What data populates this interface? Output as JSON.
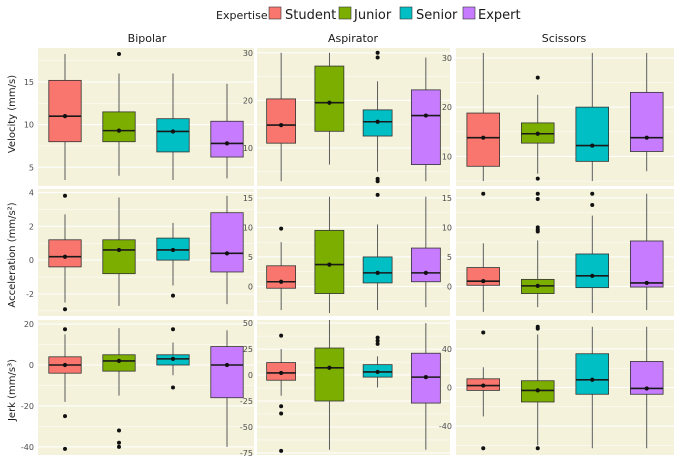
{
  "legend": {
    "title": "Expertise",
    "items": [
      {
        "label": "Student",
        "color": "#F8766D"
      },
      {
        "label": "Junior",
        "color": "#7CAE00"
      },
      {
        "label": "Senior",
        "color": "#00BFC4"
      },
      {
        "label": "Expert",
        "color": "#C77CFF"
      }
    ]
  },
  "panel_background": "#F4F2DB",
  "columns": [
    "Bipolar",
    "Aspirator",
    "Scissors"
  ],
  "rows": [
    "Velocity (mm/s)",
    "Acceleration (mm/s²)",
    "Jerk (mm/s³)"
  ],
  "chart_data": [
    {
      "type": "box",
      "title": "Bipolar",
      "ylabel": "Velocity (mm/s)",
      "ylim": [
        2.8,
        19
      ],
      "yticks": [
        5,
        10,
        15
      ],
      "series": [
        {
          "name": "Student",
          "lo": 3.5,
          "q1": 8,
          "med": 11,
          "mean": 11,
          "q3": 15.2,
          "hi": 18.3,
          "outliers": []
        },
        {
          "name": "Junior",
          "lo": 4,
          "q1": 8,
          "med": 9.3,
          "mean": 9.3,
          "q3": 11.5,
          "hi": 16,
          "outliers": [
            18.3
          ]
        },
        {
          "name": "Senior",
          "lo": 3.5,
          "q1": 6.8,
          "med": 9.2,
          "mean": 9.2,
          "q3": 10.7,
          "hi": 16,
          "outliers": []
        },
        {
          "name": "Expert",
          "lo": 3.7,
          "q1": 6.2,
          "med": 7.8,
          "mean": 7.8,
          "q3": 10.4,
          "hi": 14.8,
          "outliers": []
        }
      ]
    },
    {
      "type": "box",
      "title": "Aspirator",
      "ylabel": "",
      "ylim": [
        2,
        31
      ],
      "yticks": [
        10,
        20,
        30
      ],
      "series": [
        {
          "name": "Student",
          "lo": 3,
          "q1": 11,
          "med": 14.8,
          "mean": 14.8,
          "q3": 20.3,
          "hi": 30,
          "outliers": []
        },
        {
          "name": "Junior",
          "lo": 6.5,
          "q1": 13.5,
          "med": 19.5,
          "mean": 19.5,
          "q3": 27.2,
          "hi": 30,
          "outliers": []
        },
        {
          "name": "Senior",
          "lo": 5,
          "q1": 12.5,
          "med": 15.5,
          "mean": 15.5,
          "q3": 18,
          "hi": 24,
          "outliers": [
            30,
            29,
            3.5,
            3
          ]
        },
        {
          "name": "Expert",
          "lo": 3,
          "q1": 6.5,
          "med": 16.8,
          "mean": 16.8,
          "q3": 22.2,
          "hi": 29,
          "outliers": []
        }
      ]
    },
    {
      "type": "box",
      "title": "Scissors",
      "ylabel": "",
      "ylim": [
        4,
        32
      ],
      "yticks": [
        10,
        20,
        30
      ],
      "series": [
        {
          "name": "Student",
          "lo": 5,
          "q1": 8,
          "med": 13.8,
          "mean": 13.8,
          "q3": 18.8,
          "hi": 31,
          "outliers": []
        },
        {
          "name": "Junior",
          "lo": 6.5,
          "q1": 12.7,
          "med": 14.6,
          "mean": 14.6,
          "q3": 16.8,
          "hi": 22.5,
          "outliers": [
            26,
            5.5
          ]
        },
        {
          "name": "Senior",
          "lo": 5,
          "q1": 9,
          "med": 12.2,
          "mean": 12.2,
          "q3": 20,
          "hi": 31,
          "outliers": []
        },
        {
          "name": "Expert",
          "lo": 7,
          "q1": 11,
          "med": 13.8,
          "mean": 13.8,
          "q3": 23,
          "hi": 31,
          "outliers": []
        }
      ]
    },
    {
      "type": "box",
      "title": "",
      "ylabel": "Acceleration (mm/s²)",
      "ylim": [
        -3.3,
        4.2
      ],
      "yticks": [
        -2,
        0,
        2,
        4
      ],
      "series": [
        {
          "name": "Student",
          "lo": -2.5,
          "q1": -0.4,
          "med": 0.2,
          "mean": 0.2,
          "q3": 1.2,
          "hi": 2.7,
          "outliers": [
            3.8,
            -2.9
          ]
        },
        {
          "name": "Junior",
          "lo": -2.7,
          "q1": -0.8,
          "med": 0.6,
          "mean": 0.6,
          "q3": 1.2,
          "hi": 3.7,
          "outliers": []
        },
        {
          "name": "Senior",
          "lo": -1.5,
          "q1": 0,
          "med": 0.6,
          "mean": 0.6,
          "q3": 1.3,
          "hi": 2.2,
          "outliers": [
            -2.1
          ]
        },
        {
          "name": "Expert",
          "lo": -2.6,
          "q1": -0.7,
          "med": 0.4,
          "mean": 0.4,
          "q3": 2.8,
          "hi": 3.8,
          "outliers": []
        }
      ]
    },
    {
      "type": "box",
      "title": "",
      "ylabel": "",
      "ylim": [
        -5,
        16.5
      ],
      "yticks": [
        0,
        5,
        10,
        15
      ],
      "series": [
        {
          "name": "Student",
          "lo": -4,
          "q1": -0.3,
          "med": 0.8,
          "mean": 0.8,
          "q3": 3.5,
          "hi": 7.5,
          "outliers": [
            9.8
          ]
        },
        {
          "name": "Junior",
          "lo": -4.5,
          "q1": -1.2,
          "med": 3.7,
          "mean": 3.7,
          "q3": 9.5,
          "hi": 15.2,
          "outliers": []
        },
        {
          "name": "Senior",
          "lo": -4,
          "q1": 0.6,
          "med": 2.3,
          "mean": 2.3,
          "q3": 5,
          "hi": 10.5,
          "outliers": [
            15.5
          ]
        },
        {
          "name": "Expert",
          "lo": -3.5,
          "q1": 0.8,
          "med": 2.3,
          "mean": 2.3,
          "q3": 6.5,
          "hi": 15.2,
          "outliers": []
        }
      ]
    },
    {
      "type": "box",
      "title": "",
      "ylabel": "",
      "ylim": [
        -5,
        16.5
      ],
      "yticks": [
        0,
        5,
        10,
        15
      ],
      "series": [
        {
          "name": "Student",
          "lo": -4.3,
          "q1": 0.2,
          "med": 0.9,
          "mean": 0.9,
          "q3": 3.2,
          "hi": 7.3,
          "outliers": [
            15.7
          ]
        },
        {
          "name": "Junior",
          "lo": -3.5,
          "q1": -1.2,
          "med": 0.1,
          "mean": 0.1,
          "q3": 1.2,
          "hi": 7.8,
          "outliers": [
            15.7,
            14.8,
            10,
            9.6,
            9.3
          ]
        },
        {
          "name": "Senior",
          "lo": -4.5,
          "q1": -0.2,
          "med": 1.8,
          "mean": 1.8,
          "q3": 5.5,
          "hi": 12,
          "outliers": [
            15.7,
            13.8
          ]
        },
        {
          "name": "Expert",
          "lo": -4,
          "q1": -0.1,
          "med": 0.6,
          "mean": 0.6,
          "q3": 7.7,
          "hi": 15.7,
          "outliers": []
        }
      ]
    },
    {
      "type": "box",
      "title": "",
      "ylabel": "Jerk (mm/s³)",
      "ylim": [
        -44,
        22
      ],
      "yticks": [
        -40,
        -20,
        0,
        20
      ],
      "series": [
        {
          "name": "Student",
          "lo": -18,
          "q1": -4,
          "med": 0,
          "mean": 0,
          "q3": 4,
          "hi": 15,
          "outliers": [
            17.5,
            -25,
            -41
          ]
        },
        {
          "name": "Junior",
          "lo": -15,
          "q1": -3,
          "med": 2,
          "mean": 2,
          "q3": 5,
          "hi": 18,
          "outliers": [
            -32,
            -38,
            -40
          ]
        },
        {
          "name": "Senior",
          "lo": -5,
          "q1": 0,
          "med": 3,
          "mean": 3,
          "q3": 5,
          "hi": 11,
          "outliers": [
            17.5,
            -11
          ]
        },
        {
          "name": "Expert",
          "lo": -40,
          "q1": -16,
          "med": 0,
          "mean": 0,
          "q3": 9,
          "hi": 17,
          "outliers": []
        }
      ]
    },
    {
      "type": "box",
      "title": "",
      "ylabel": "",
      "ylim": [
        -77,
        53
      ],
      "yticks": [
        -75,
        -50,
        -25,
        0,
        25,
        50
      ],
      "series": [
        {
          "name": "Student",
          "lo": -20,
          "q1": -5,
          "med": 2,
          "mean": 2,
          "q3": 12,
          "hi": 25,
          "outliers": [
            38,
            -30,
            -37,
            -73
          ]
        },
        {
          "name": "Junior",
          "lo": -72,
          "q1": -25,
          "med": 7,
          "mean": 7,
          "q3": 26,
          "hi": 53,
          "outliers": []
        },
        {
          "name": "Senior",
          "lo": -12,
          "q1": -2,
          "med": 3,
          "mean": 3,
          "q3": 10,
          "hi": 18,
          "outliers": [
            36,
            33,
            30
          ]
        },
        {
          "name": "Expert",
          "lo": -72,
          "q1": -27,
          "med": -2,
          "mean": -2,
          "q3": 21,
          "hi": 50,
          "outliers": []
        }
      ]
    },
    {
      "type": "box",
      "title": "",
      "ylabel": "",
      "ylim": [
        -70,
        70
      ],
      "yticks": [
        -40,
        0,
        40
      ],
      "series": [
        {
          "name": "Student",
          "lo": -30,
          "q1": -3,
          "med": 2,
          "mean": 2,
          "q3": 9,
          "hi": 21,
          "outliers": [
            57,
            -63
          ]
        },
        {
          "name": "Junior",
          "lo": -60,
          "q1": -15,
          "med": -3,
          "mean": -3,
          "q3": 7,
          "hi": 55,
          "outliers": [
            63,
            61,
            -63
          ]
        },
        {
          "name": "Senior",
          "lo": -63,
          "q1": -7,
          "med": 8,
          "mean": 8,
          "q3": 35,
          "hi": 63,
          "outliers": []
        },
        {
          "name": "Expert",
          "lo": -63,
          "q1": -7,
          "med": -1,
          "mean": -1,
          "q3": 27,
          "hi": 63,
          "outliers": []
        }
      ]
    }
  ]
}
